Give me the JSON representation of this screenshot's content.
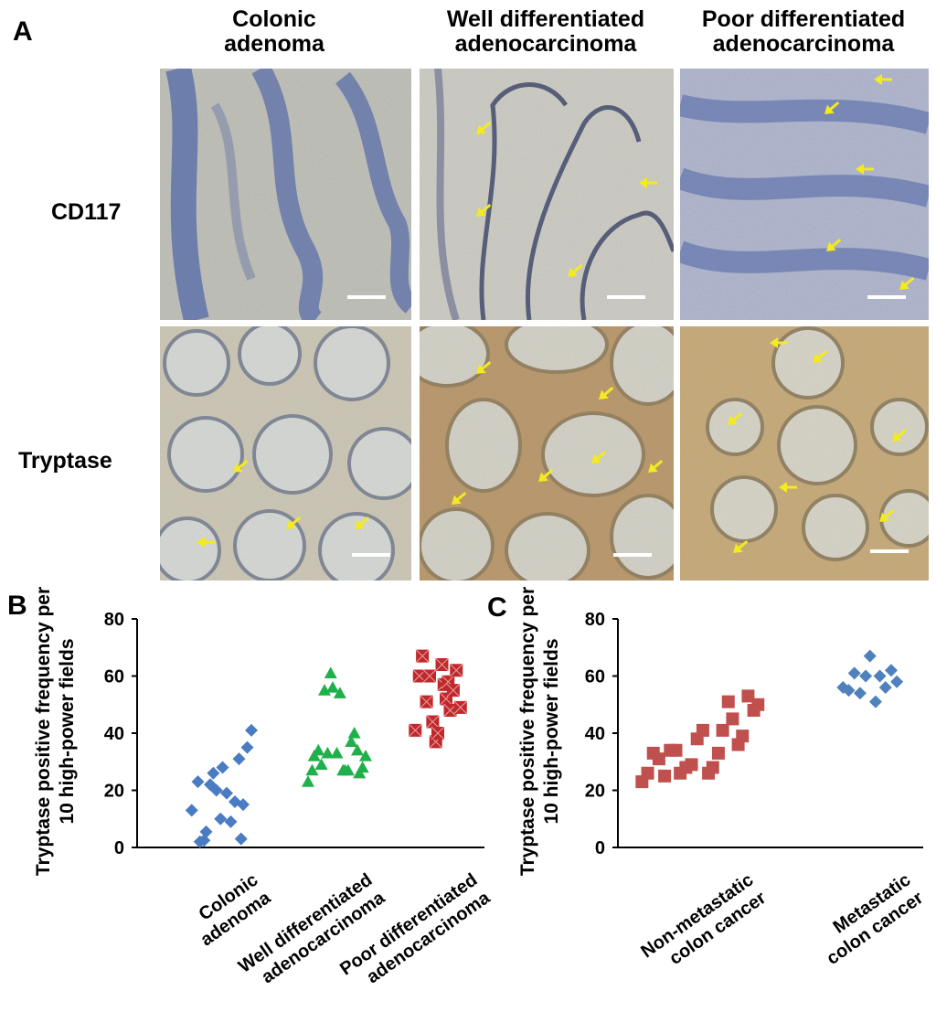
{
  "figure": {
    "panel_a": {
      "letter": "A",
      "columns": [
        {
          "line1": "Colonic",
          "line2": "adenoma"
        },
        {
          "line1": "Well differentiated",
          "line2": "adenocarcinoma"
        },
        {
          "line1": "Poor differentiated",
          "line2": "adenocarcinoma"
        }
      ],
      "rows": [
        "CD117",
        "Tryptase"
      ],
      "stain_colors": {
        "cd117_background": "#c9c7b5",
        "cd117_stain": "#5b6fa8",
        "tryptase_background": "#d6c9a6",
        "tryptase_stain": "#a27a3e",
        "arrow": "#f3ea1f",
        "scale_bar": "#ffffff"
      }
    },
    "panel_b": {
      "letter": "B"
    },
    "panel_c": {
      "letter": "C"
    }
  },
  "chart_data": [
    {
      "type": "scatter",
      "panel": "B",
      "ylabel_line1": "Tryptase positive frequency per",
      "ylabel_line2": "10 high-power fields",
      "ylim": [
        0,
        80
      ],
      "yticks": [
        0,
        20,
        40,
        60,
        80
      ],
      "categories": [
        {
          "line1": "Colonic",
          "line2": "adenoma"
        },
        {
          "line1": "Well differentiated",
          "line2": "adenocarcinoma"
        },
        {
          "line1": "Poor differentiated",
          "line2": "adenocarcinoma"
        }
      ],
      "series": [
        {
          "marker": "diamond",
          "color": "#4a7cc3",
          "points": [
            [
              -0.18,
              13
            ],
            [
              -0.12,
              23
            ],
            [
              -0.1,
              2
            ],
            [
              -0.06,
              2.5
            ],
            [
              -0.04,
              5.5
            ],
            [
              0.0,
              22
            ],
            [
              0.03,
              26
            ],
            [
              0.06,
              20
            ],
            [
              0.1,
              10
            ],
            [
              0.12,
              28
            ],
            [
              0.16,
              19
            ],
            [
              0.2,
              9
            ],
            [
              0.24,
              16
            ],
            [
              0.28,
              31
            ],
            [
              0.3,
              3
            ],
            [
              0.32,
              15
            ],
            [
              0.36,
              35
            ],
            [
              0.4,
              41
            ]
          ]
        },
        {
          "marker": "triangle",
          "color": "#20b04b",
          "points": [
            [
              -0.16,
              23
            ],
            [
              -0.12,
              27
            ],
            [
              -0.1,
              32
            ],
            [
              -0.06,
              34
            ],
            [
              -0.03,
              29
            ],
            [
              0.0,
              55
            ],
            [
              0.03,
              33
            ],
            [
              0.06,
              61
            ],
            [
              0.08,
              56
            ],
            [
              0.12,
              33
            ],
            [
              0.15,
              54
            ],
            [
              0.18,
              27
            ],
            [
              0.2,
              27
            ],
            [
              0.23,
              27
            ],
            [
              0.26,
              37
            ],
            [
              0.29,
              40
            ],
            [
              0.32,
              34
            ],
            [
              0.34,
              26
            ],
            [
              0.37,
              28
            ],
            [
              0.4,
              32
            ]
          ]
        },
        {
          "marker": "square-x",
          "color": "#c0282c",
          "points": [
            [
              -0.14,
              41
            ],
            [
              -0.1,
              60
            ],
            [
              -0.07,
              67
            ],
            [
              -0.03,
              51
            ],
            [
              0.0,
              60
            ],
            [
              0.03,
              44
            ],
            [
              0.06,
              37
            ],
            [
              0.08,
              40
            ],
            [
              0.12,
              64
            ],
            [
              0.14,
              57
            ],
            [
              0.16,
              52
            ],
            [
              0.18,
              58
            ],
            [
              0.2,
              48
            ],
            [
              0.23,
              55
            ],
            [
              0.26,
              62
            ],
            [
              0.3,
              49
            ]
          ]
        }
      ]
    },
    {
      "type": "scatter",
      "panel": "C",
      "ylabel_line1": "Tryptase positive frequency per",
      "ylabel_line2": "10 high-power fields",
      "ylim": [
        0,
        80
      ],
      "yticks": [
        0,
        20,
        40,
        60,
        80
      ],
      "categories": [
        {
          "line1": "Non-metastatic",
          "line2": "colon cancer"
        },
        {
          "line1": "Metastatic",
          "line2": "colon cancer"
        }
      ],
      "series": [
        {
          "marker": "square",
          "color": "#c0504d",
          "points": [
            [
              -0.45,
              23
            ],
            [
              -0.41,
              26
            ],
            [
              -0.37,
              33
            ],
            [
              -0.33,
              31
            ],
            [
              -0.29,
              25
            ],
            [
              -0.25,
              34
            ],
            [
              -0.21,
              34
            ],
            [
              -0.18,
              26
            ],
            [
              -0.14,
              28
            ],
            [
              -0.1,
              29
            ],
            [
              -0.06,
              38
            ],
            [
              -0.02,
              41
            ],
            [
              0.02,
              26
            ],
            [
              0.05,
              28
            ],
            [
              0.09,
              33
            ],
            [
              0.12,
              41
            ],
            [
              0.16,
              51
            ],
            [
              0.19,
              45
            ],
            [
              0.23,
              36
            ],
            [
              0.26,
              39
            ],
            [
              0.3,
              53
            ],
            [
              0.34,
              48
            ],
            [
              0.37,
              50
            ]
          ]
        },
        {
          "marker": "diamond",
          "color": "#4f81bd",
          "points": [
            [
              -0.14,
              56
            ],
            [
              -0.1,
              55
            ],
            [
              -0.06,
              61
            ],
            [
              -0.02,
              54
            ],
            [
              0.02,
              60
            ],
            [
              0.05,
              67
            ],
            [
              0.09,
              51
            ],
            [
              0.12,
              60
            ],
            [
              0.16,
              56
            ],
            [
              0.2,
              62
            ],
            [
              0.24,
              58
            ]
          ]
        }
      ]
    }
  ]
}
